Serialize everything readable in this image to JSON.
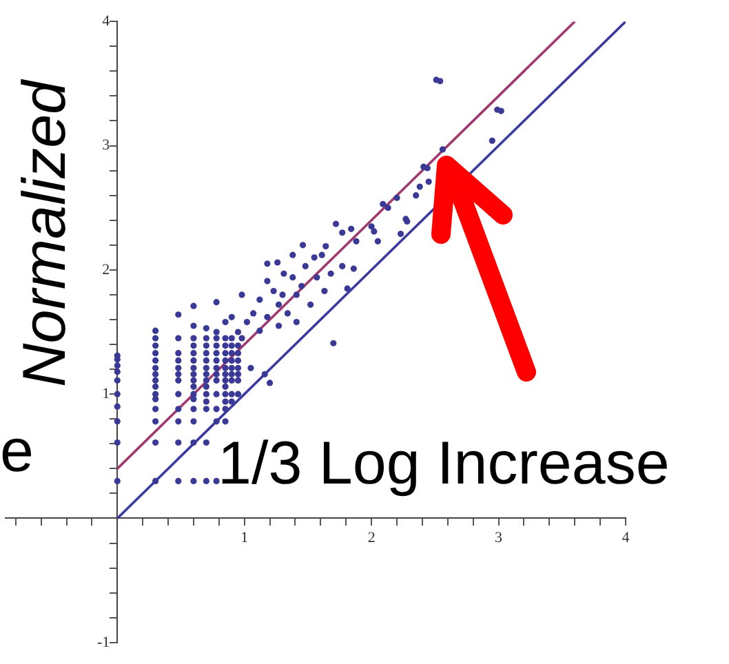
{
  "chart_data": {
    "type": "scatter",
    "xlim": [
      -0.88,
      4
    ],
    "ylim": [
      -1,
      4
    ],
    "xticks": [
      {
        "value": -0.8,
        "label": null
      },
      {
        "value": -0.6,
        "label": null
      },
      {
        "value": -0.4,
        "label": null
      },
      {
        "value": -0.2,
        "label": null
      },
      {
        "value": 0.2,
        "label": null
      },
      {
        "value": 0.4,
        "label": null
      },
      {
        "value": 0.6,
        "label": null
      },
      {
        "value": 0.8,
        "label": null
      },
      1,
      {
        "value": 1.2,
        "label": null
      },
      {
        "value": 1.4,
        "label": null
      },
      {
        "value": 1.6,
        "label": null
      },
      {
        "value": 1.8,
        "label": null
      },
      2,
      {
        "value": 2.2,
        "label": null
      },
      {
        "value": 2.4,
        "label": null
      },
      {
        "value": 2.6,
        "label": null
      },
      {
        "value": 2.8,
        "label": null
      },
      3,
      {
        "value": 3.2,
        "label": null
      },
      {
        "value": 3.4,
        "label": null
      },
      {
        "value": 3.6,
        "label": null
      },
      {
        "value": 3.8,
        "label": null
      },
      4
    ],
    "yticks": [
      -1,
      {
        "value": -0.8,
        "label": null
      },
      {
        "value": -0.6,
        "label": null
      },
      {
        "value": -0.4,
        "label": null
      },
      {
        "value": -0.2,
        "label": null
      },
      {
        "value": 0.2,
        "label": null
      },
      {
        "value": 0.4,
        "label": null
      },
      {
        "value": 0.6,
        "label": null
      },
      {
        "value": 0.8,
        "label": null
      },
      1,
      {
        "value": 1.2,
        "label": null
      },
      {
        "value": 1.4,
        "label": null
      },
      {
        "value": 1.6,
        "label": null
      },
      {
        "value": 1.8,
        "label": null
      },
      2,
      {
        "value": 2.2,
        "label": null
      },
      {
        "value": 2.4,
        "label": null
      },
      {
        "value": 2.6,
        "label": null
      },
      {
        "value": 2.8,
        "label": null
      },
      3,
      {
        "value": 3.2,
        "label": null
      },
      {
        "value": 3.4,
        "label": null
      },
      {
        "value": 3.6,
        "label": null
      },
      {
        "value": 3.8,
        "label": null
      },
      4
    ],
    "series": [
      {
        "marker": "circle",
        "color": "#3a3a96",
        "x": [
          0,
          0,
          0,
          0,
          0,
          0,
          0,
          0,
          0,
          0,
          0.3,
          0.3,
          0.3,
          0.3,
          0.3,
          0.3,
          0.3,
          0.3,
          0.3,
          0.3,
          0.3,
          0.3,
          0.3,
          0.3,
          0.3,
          0.48,
          0.48,
          0.48,
          0.48,
          0.48,
          0.48,
          0.48,
          0.48,
          0.48,
          0.48,
          0.48,
          0.48,
          0.6,
          0.6,
          0.6,
          0.6,
          0.6,
          0.6,
          0.6,
          0.6,
          0.6,
          0.6,
          0.6,
          0.6,
          0.6,
          0.6,
          0.6,
          0.6,
          0.7,
          0.7,
          0.7,
          0.7,
          0.7,
          0.7,
          0.7,
          0.7,
          0.7,
          0.7,
          0.7,
          0.7,
          0.7,
          0.7,
          0.78,
          0.78,
          0.78,
          0.78,
          0.78,
          0.78,
          0.78,
          0.78,
          0.78,
          0.78,
          0.78,
          0.78,
          0.78,
          0.85,
          0.85,
          0.85,
          0.85,
          0.85,
          0.85,
          0.85,
          0.85,
          0.85,
          0.85,
          0.85,
          0.85,
          0.85,
          0.9,
          0.9,
          0.9,
          0.9,
          0.9,
          0.9,
          0.9,
          0.9,
          0.9,
          0.9,
          0.95,
          0.95,
          0.95,
          0.95,
          0.95,
          0.95,
          0.95,
          0.95,
          1.18,
          1.26,
          1.18,
          1.38,
          1.46,
          1.55,
          1.61,
          1.72,
          1.77,
          1.84,
          1.88,
          1.64,
          1.48,
          1.31,
          1.38,
          1.23,
          1.3,
          1.12,
          1.27,
          1.41,
          1.45,
          1.57,
          1.68,
          1.77,
          1.86,
          1.81,
          1.63,
          1.52,
          0.98,
          1.07,
          1.02,
          1.18,
          1.34,
          1.12,
          1.27,
          0.98,
          1.41,
          1.05,
          1.16,
          1.2,
          1.7,
          2.51,
          2.54,
          2.99,
          3.02,
          2.95,
          2.56,
          2.41,
          2.44,
          2.38,
          2.45,
          2.35,
          2.09,
          2.13,
          2.27,
          2.28,
          2.23,
          2,
          2.02,
          2.05,
          2.2
        ],
        "values": [
          0.3,
          0.61,
          0.78,
          0.9,
          1,
          1.11,
          1.18,
          1.23,
          1.28,
          1.31,
          0.3,
          0.61,
          0.78,
          0.88,
          0.96,
          1,
          1.06,
          1.11,
          1.16,
          1.21,
          1.27,
          1.33,
          1.39,
          1.45,
          1.51,
          0.3,
          0.61,
          0.78,
          0.88,
          1,
          1.11,
          1.16,
          1.21,
          1.27,
          1.33,
          1.45,
          1.64,
          0.3,
          0.61,
          0.78,
          0.88,
          0.96,
          1,
          1.06,
          1.11,
          1.16,
          1.21,
          1.27,
          1.33,
          1.39,
          1.45,
          1.55,
          1.71,
          0.3,
          0.61,
          0.88,
          0.94,
          1,
          1.06,
          1.11,
          1.16,
          1.21,
          1.27,
          1.33,
          1.39,
          1.45,
          1.53,
          0.3,
          0.78,
          0.88,
          1,
          1.11,
          1.16,
          1.21,
          1.27,
          1.33,
          1.39,
          1.45,
          1.5,
          1.74,
          0.78,
          0.88,
          0.94,
          1,
          1.06,
          1.11,
          1.16,
          1.21,
          1.27,
          1.33,
          1.39,
          1.45,
          1.58,
          0.94,
          1,
          1.11,
          1.16,
          1.21,
          1.27,
          1.33,
          1.39,
          1.45,
          1.62,
          1,
          1.11,
          1.16,
          1.21,
          1.27,
          1.33,
          1.39,
          1.5,
          2.05,
          2.06,
          1.91,
          2.12,
          2.2,
          2.1,
          2.12,
          2.37,
          2.3,
          2.33,
          2.23,
          2.19,
          2.03,
          1.97,
          1.94,
          1.83,
          1.8,
          1.76,
          1.72,
          1.8,
          1.87,
          1.94,
          1.97,
          2.03,
          2.01,
          1.85,
          1.83,
          1.72,
          1.8,
          1.65,
          1.58,
          1.62,
          1.65,
          1.51,
          1.55,
          1.45,
          1.58,
          1.21,
          1.16,
          1.09,
          1.41,
          3.53,
          3.52,
          3.29,
          3.28,
          3.04,
          2.97,
          2.83,
          2.82,
          2.67,
          2.71,
          2.6,
          2.53,
          2.5,
          2.41,
          2.39,
          2.29,
          2.35,
          2.31,
          2.23,
          2.58
        ]
      },
      {
        "type": "line",
        "marker": "none",
        "color": "#3a3aa0",
        "x": [
          0,
          4
        ],
        "values": [
          0,
          4
        ]
      },
      {
        "type": "line",
        "marker": "none",
        "color": "#a03a6e",
        "x": [
          0,
          3.6
        ],
        "values": [
          0.4,
          4
        ]
      }
    ],
    "annotations": [
      "Normalized",
      "1/3 Log Increase",
      "e"
    ]
  }
}
